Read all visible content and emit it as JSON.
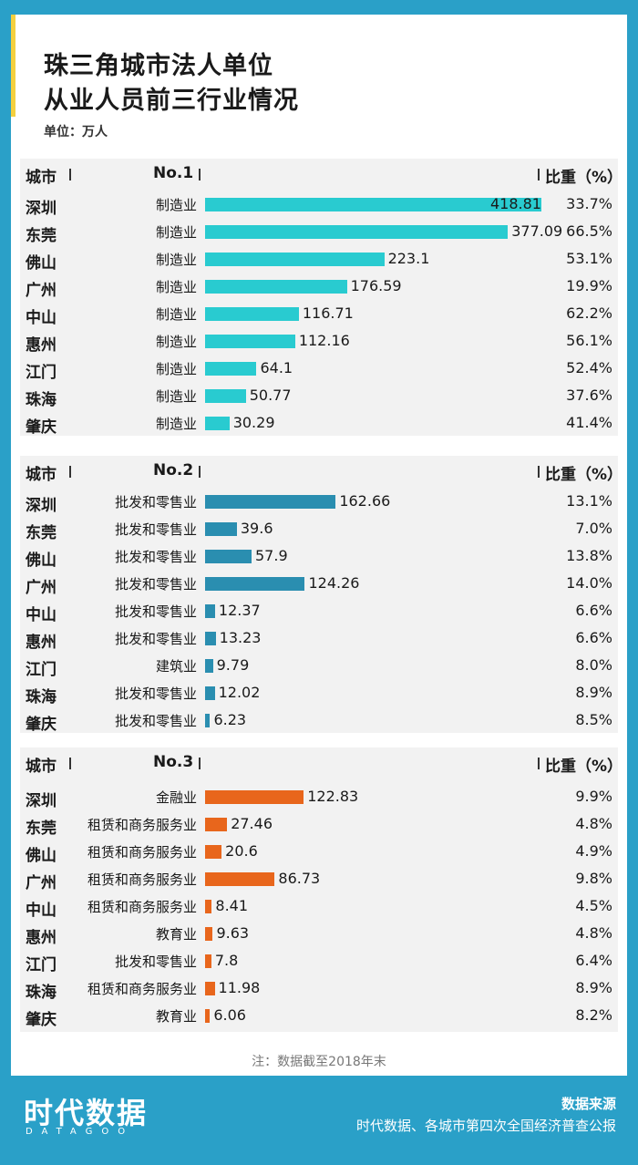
{
  "title_line1": "珠三角城市法人单位",
  "title_line2": "从业人员前三行业情况",
  "unit": "单位：万人",
  "note": "注：数据截至2018年末",
  "footer": {
    "logo": "时代数据",
    "logo_sub": "DATAGOO",
    "source_label": "数据来源",
    "source_text": "时代数据、各城市第四次全国经济普查公报"
  },
  "colors": {
    "background": "#2aa0c8",
    "bar1": "#29cbd0",
    "bar2": "#2a8eb0",
    "bar3": "#e8661c"
  },
  "chart_data": [
    {
      "type": "bar",
      "title": "No.1",
      "header": {
        "city": "城市",
        "rank": "No.1",
        "share": "比重（%）"
      },
      "categories": [
        "深圳",
        "东莞",
        "佛山",
        "广州",
        "中山",
        "惠州",
        "江门",
        "珠海",
        "肇庆"
      ],
      "industries": [
        "制造业",
        "制造业",
        "制造业",
        "制造业",
        "制造业",
        "制造业",
        "制造业",
        "制造业",
        "制造业"
      ],
      "value_labels": [
        "418.81",
        "377.09",
        "223.1",
        "176.59",
        "116.71",
        "112.16",
        "64.1",
        "50.77",
        "30.29"
      ],
      "values": [
        418.81,
        377.09,
        223.1,
        176.59,
        116.71,
        112.16,
        64.1,
        50.77,
        30.29
      ],
      "shares": [
        "33.7%",
        "66.5%",
        "53.1%",
        "19.9%",
        "62.2%",
        "56.1%",
        "52.4%",
        "37.6%",
        "41.4%"
      ],
      "color": "#29cbd0"
    },
    {
      "type": "bar",
      "title": "No.2",
      "header": {
        "city": "城市",
        "rank": "No.2",
        "share": "比重（%）"
      },
      "categories": [
        "深圳",
        "东莞",
        "佛山",
        "广州",
        "中山",
        "惠州",
        "江门",
        "珠海",
        "肇庆"
      ],
      "industries": [
        "批发和零售业",
        "批发和零售业",
        "批发和零售业",
        "批发和零售业",
        "批发和零售业",
        "批发和零售业",
        "建筑业",
        "批发和零售业",
        "批发和零售业"
      ],
      "value_labels": [
        "162.66",
        "39.6",
        "57.9",
        "124.26",
        "12.37",
        "13.23",
        "9.79",
        "12.02",
        "6.23"
      ],
      "values": [
        162.66,
        39.6,
        57.9,
        124.26,
        12.37,
        13.23,
        9.79,
        12.02,
        6.23
      ],
      "shares": [
        "13.1%",
        "7.0%",
        "13.8%",
        "14.0%",
        "6.6%",
        "6.6%",
        "8.0%",
        "8.9%",
        "8.5%"
      ],
      "color": "#2a8eb0"
    },
    {
      "type": "bar",
      "title": "No.3",
      "header": {
        "city": "城市",
        "rank": "No.3",
        "share": "比重（%）"
      },
      "categories": [
        "深圳",
        "东莞",
        "佛山",
        "广州",
        "中山",
        "惠州",
        "江门",
        "珠海",
        "肇庆"
      ],
      "industries": [
        "金融业",
        "租赁和商务服务业",
        "租赁和商务服务业",
        "租赁和商务服务业",
        "租赁和商务服务业",
        "教育业",
        "批发和零售业",
        "租赁和商务服务业",
        "教育业"
      ],
      "value_labels": [
        "122.83",
        "27.46",
        "20.6",
        "86.73",
        "8.41",
        "9.63",
        "7.8",
        "11.98",
        "6.06"
      ],
      "values": [
        122.83,
        27.46,
        20.6,
        86.73,
        8.41,
        9.63,
        7.8,
        11.98,
        6.06
      ],
      "shares": [
        "9.9%",
        "4.8%",
        "4.9%",
        "9.8%",
        "4.5%",
        "4.8%",
        "6.4%",
        "8.9%",
        "8.2%"
      ],
      "color": "#e8661c"
    }
  ]
}
